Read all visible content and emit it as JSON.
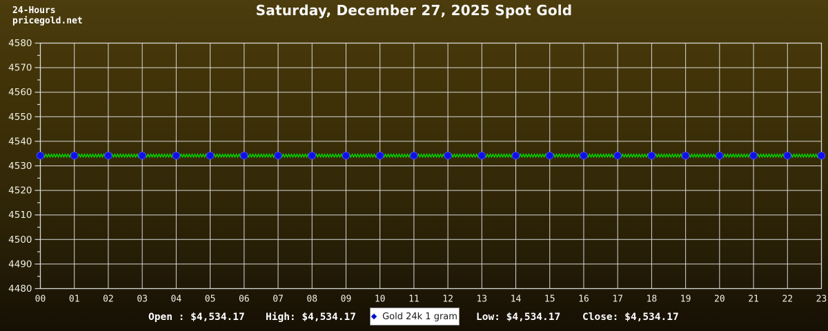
{
  "header": {
    "duration_label": "24-Hours",
    "site": "pricegold.net",
    "title": "Saturday, December 27, 2025 Spot Gold"
  },
  "chart_data": {
    "type": "line",
    "title": "Saturday, December 27, 2025 Spot Gold",
    "x": [
      "00",
      "01",
      "02",
      "03",
      "04",
      "05",
      "06",
      "07",
      "08",
      "09",
      "10",
      "11",
      "12",
      "13",
      "14",
      "15",
      "16",
      "17",
      "18",
      "19",
      "20",
      "21",
      "22",
      "23"
    ],
    "series": [
      {
        "name": "Gold 24k 1 gram",
        "values": [
          4534.17,
          4534.17,
          4534.17,
          4534.17,
          4534.17,
          4534.17,
          4534.17,
          4534.17,
          4534.17,
          4534.17,
          4534.17,
          4534.17,
          4534.17,
          4534.17,
          4534.17,
          4534.17,
          4534.17,
          4534.17,
          4534.17,
          4534.17,
          4534.17,
          4534.17,
          4534.17,
          4534.17
        ],
        "line_color": "#00dd00",
        "marker_color": "#0f0fe6"
      }
    ],
    "ylim": [
      4480,
      4580
    ],
    "ytick_step": 10,
    "y_minor_step": 5,
    "xlabel": "",
    "ylabel": "",
    "grid": true,
    "legend_position": "bottom-center",
    "summary": {
      "open": 4534.17,
      "high": 4534.17,
      "low": 4534.17,
      "close": 4534.17
    }
  },
  "legend": {
    "label": "Gold 24k 1 gram",
    "marker_color": "#0011cc"
  },
  "stats": {
    "open_label": "Open :",
    "open_value": "$4,534.17",
    "high_label": "High:",
    "high_value": "$4,534.17",
    "low_label": "Low:",
    "low_value": "$4,534.17",
    "close_label": "Close:",
    "close_value": "$4,534.17"
  },
  "colors": {
    "grid": "#d9d9d9",
    "tick_text": "#f0efe4",
    "background_top": "#4c3c0e",
    "background_bottom": "#161004",
    "line": "#00dd00",
    "marker": "#0f0fe6",
    "legend_marker": "#0011cc"
  }
}
